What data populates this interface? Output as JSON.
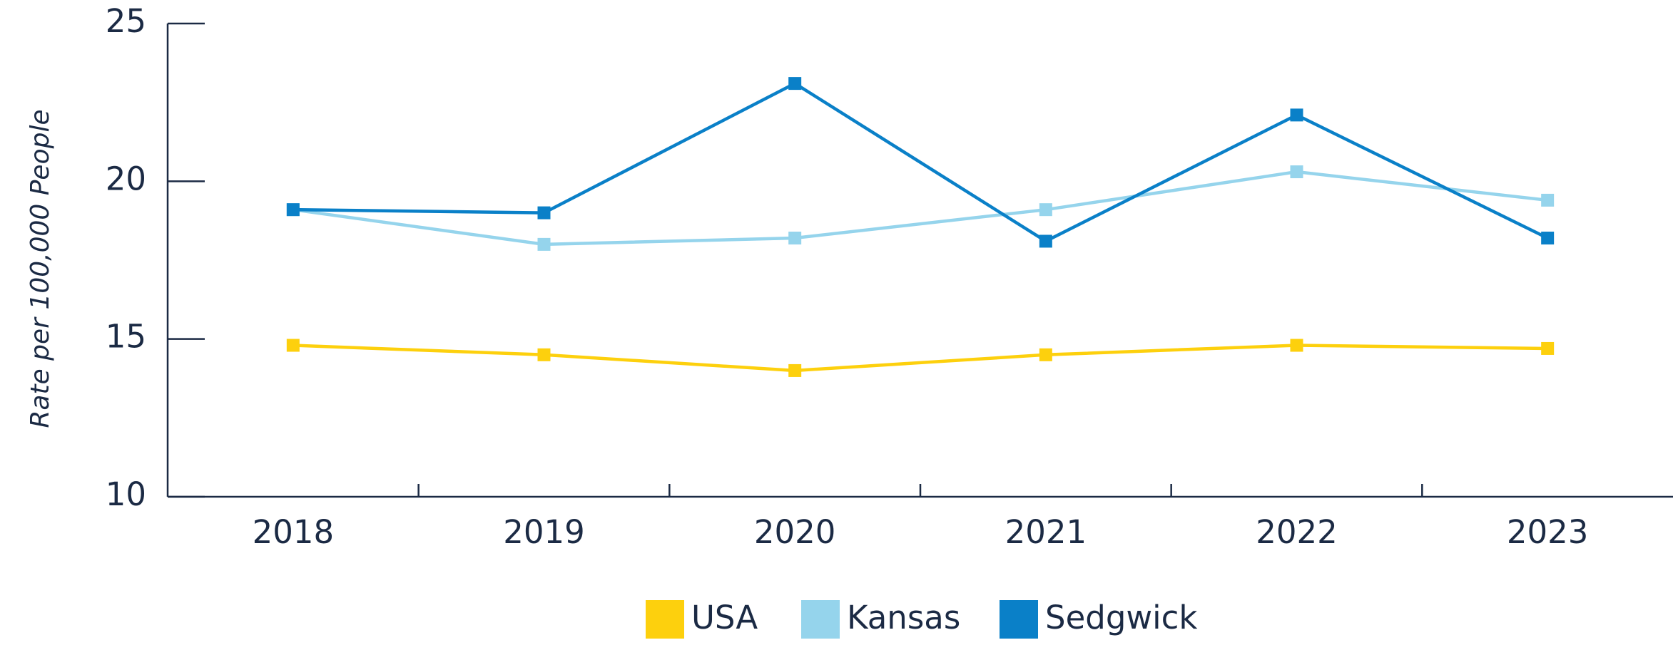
{
  "chart_data": {
    "type": "line",
    "y_label": "Rate per 100,000 People",
    "categories": [
      "2018",
      "2019",
      "2020",
      "2021",
      "2022",
      "2023"
    ],
    "series": [
      {
        "name": "USA",
        "color": "#fdd00d",
        "values": [
          14.8,
          14.5,
          14.0,
          14.5,
          14.8,
          14.7
        ]
      },
      {
        "name": "Kansas",
        "color": "#95d4ec",
        "values": [
          19.1,
          18.0,
          18.2,
          19.1,
          20.3,
          19.4
        ]
      },
      {
        "name": "Sedgwick",
        "color": "#0a80c8",
        "values": [
          19.1,
          19.0,
          23.1,
          18.1,
          22.1,
          18.2
        ]
      }
    ],
    "ylim": [
      10,
      25
    ],
    "yticks": [
      10,
      15,
      20,
      25
    ]
  }
}
